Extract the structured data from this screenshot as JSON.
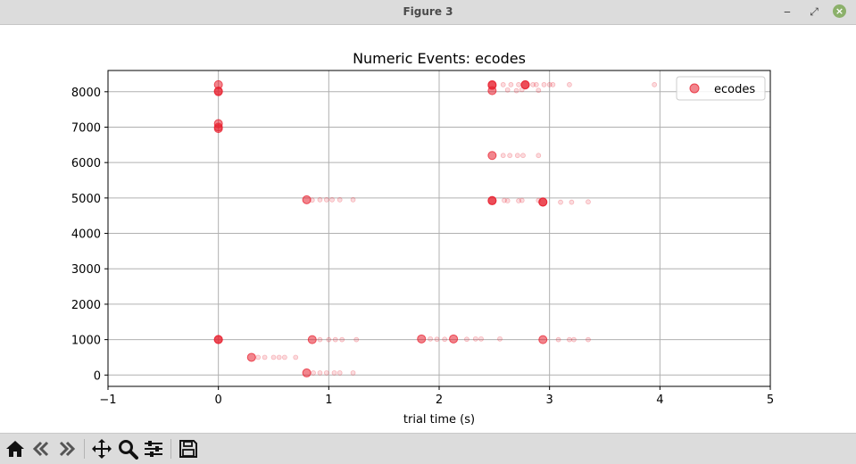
{
  "window": {
    "title": "Figure 3",
    "controls": {
      "minimize": "‒",
      "maximize": "⤢",
      "close": "×"
    }
  },
  "toolbar": {
    "icons": [
      "home-icon",
      "back-icon",
      "forward-icon",
      "pan-icon",
      "zoom-icon",
      "configure-subplots-icon",
      "save-icon"
    ]
  },
  "chart_data": {
    "type": "scatter",
    "title": "Numeric Events: ecodes",
    "xlabel": "trial time (s)",
    "ylabel": "",
    "xlim": [
      -1,
      5
    ],
    "ylim": [
      -320,
      8600
    ],
    "xticks": [
      -1,
      0,
      1,
      2,
      3,
      4,
      5
    ],
    "yticks": [
      0,
      1000,
      2000,
      3000,
      4000,
      5000,
      6000,
      7000,
      8000
    ],
    "xtick_labels": [
      "−1",
      "0",
      "1",
      "2",
      "3",
      "4",
      "5"
    ],
    "ytick_labels": [
      "0",
      "1000",
      "2000",
      "3000",
      "4000",
      "5000",
      "6000",
      "7000",
      "8000"
    ],
    "grid": true,
    "legend": {
      "position": "top-right",
      "entries": [
        "ecodes"
      ]
    },
    "series": [
      {
        "name": "ecodes",
        "color": "#e8202f",
        "points": [
          [
            0,
            8200
          ],
          [
            0,
            8000
          ],
          [
            0,
            8020
          ],
          [
            0,
            7100
          ],
          [
            0,
            7000
          ],
          [
            0,
            6960
          ],
          [
            0,
            1000
          ],
          [
            0,
            1005
          ],
          [
            2.48,
            8200
          ],
          [
            2.48,
            8180
          ],
          [
            2.78,
            8200
          ],
          [
            2.78,
            8190
          ],
          [
            2.48,
            8030
          ],
          [
            2.48,
            6200
          ],
          [
            2.48,
            4920
          ],
          [
            2.48,
            4930
          ],
          [
            2.94,
            4880
          ],
          [
            2.94,
            4890
          ],
          [
            0.8,
            4950
          ],
          [
            0.3,
            500
          ],
          [
            0.85,
            1000
          ],
          [
            1.84,
            1020
          ],
          [
            2.13,
            1020
          ],
          [
            2.94,
            1000
          ],
          [
            0.8,
            60
          ]
        ],
        "faint_points": [
          [
            2.58,
            8200
          ],
          [
            2.65,
            8200
          ],
          [
            2.72,
            8200
          ],
          [
            2.85,
            8200
          ],
          [
            2.88,
            8200
          ],
          [
            2.95,
            8200
          ],
          [
            3.0,
            8200
          ],
          [
            3.03,
            8200
          ],
          [
            3.18,
            8200
          ],
          [
            3.95,
            8200
          ],
          [
            2.62,
            8050
          ],
          [
            2.7,
            8030
          ],
          [
            2.75,
            8060
          ],
          [
            2.9,
            8040
          ],
          [
            2.58,
            6200
          ],
          [
            2.64,
            6200
          ],
          [
            2.71,
            6200
          ],
          [
            2.76,
            6200
          ],
          [
            2.9,
            6200
          ],
          [
            2.59,
            4930
          ],
          [
            2.62,
            4920
          ],
          [
            2.72,
            4920
          ],
          [
            2.75,
            4930
          ],
          [
            2.9,
            4930
          ],
          [
            3.1,
            4880
          ],
          [
            3.2,
            4880
          ],
          [
            3.35,
            4890
          ],
          [
            0.85,
            4940
          ],
          [
            0.92,
            4950
          ],
          [
            0.98,
            4950
          ],
          [
            1.03,
            4950
          ],
          [
            1.1,
            4950
          ],
          [
            1.22,
            4950
          ],
          [
            0.36,
            500
          ],
          [
            0.42,
            500
          ],
          [
            0.5,
            500
          ],
          [
            0.55,
            500
          ],
          [
            0.6,
            500
          ],
          [
            0.7,
            500
          ],
          [
            0.92,
            1000
          ],
          [
            1.0,
            1000
          ],
          [
            1.06,
            1000
          ],
          [
            1.12,
            1000
          ],
          [
            1.25,
            1000
          ],
          [
            1.92,
            1020
          ],
          [
            1.98,
            1010
          ],
          [
            2.05,
            1010
          ],
          [
            2.25,
            1010
          ],
          [
            2.33,
            1020
          ],
          [
            2.38,
            1020
          ],
          [
            2.55,
            1020
          ],
          [
            3.08,
            1000
          ],
          [
            3.18,
            1000
          ],
          [
            3.22,
            1000
          ],
          [
            3.35,
            1000
          ],
          [
            0.86,
            60
          ],
          [
            0.92,
            60
          ],
          [
            0.98,
            60
          ],
          [
            1.05,
            60
          ],
          [
            1.1,
            60
          ],
          [
            1.22,
            60
          ]
        ]
      }
    ]
  }
}
